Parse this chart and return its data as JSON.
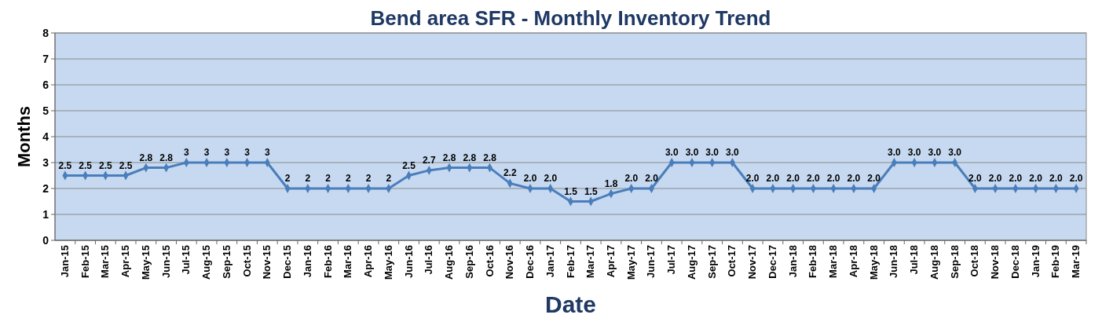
{
  "chart_data": {
    "type": "line",
    "title": "Bend area SFR - Monthly Inventory Trend",
    "xlabel": "Date",
    "ylabel": "Months",
    "categories": [
      "Jan-15",
      "Feb-15",
      "Mar-15",
      "Apr-15",
      "May-15",
      "Jun-15",
      "Jul-15",
      "Aug-15",
      "Sep-15",
      "Oct-15",
      "Nov-15",
      "Dec-15",
      "Jan-16",
      "Feb-16",
      "Mar-16",
      "Apr-16",
      "May-16",
      "Jun-16",
      "Jul-16",
      "Aug-16",
      "Sep-16",
      "Oct-16",
      "Nov-16",
      "Dec-16",
      "Jan-17",
      "Feb-17",
      "Mar-17",
      "Apr-17",
      "May-17",
      "Jun-17",
      "Jul-17",
      "Aug-17",
      "Sep-17",
      "Oct-17",
      "Nov-17",
      "Dec-17",
      "Jan-18",
      "Feb-18",
      "Mar-18",
      "Apr-18",
      "May-18",
      "Jun-18",
      "Jul-18",
      "Aug-18",
      "Sep-18",
      "Oct-18",
      "Nov-18",
      "Dec-18",
      "Jan-19",
      "Feb-19",
      "Mar-19"
    ],
    "series": [
      {
        "color": "#4a7ebb",
        "values": [
          2.5,
          2.5,
          2.5,
          2.5,
          2.8,
          2.8,
          3,
          3,
          3,
          3,
          3,
          2,
          2,
          2,
          2,
          2,
          2,
          2.5,
          2.7,
          2.8,
          2.8,
          2.8,
          2.2,
          2.0,
          2.0,
          1.5,
          1.5,
          1.8,
          2.0,
          2.0,
          3.0,
          3.0,
          3.0,
          3.0,
          2.0,
          2.0,
          2.0,
          2.0,
          2.0,
          2.0,
          2.0,
          3.0,
          3.0,
          3.0,
          3.0,
          2.0,
          2.0,
          2.0,
          2.0,
          2.0,
          2.0
        ],
        "value_labels": [
          "2.5",
          "2.5",
          "2.5",
          "2.5",
          "2.8",
          "2.8",
          "3",
          "3",
          "3",
          "3",
          "3",
          "2",
          "2",
          "2",
          "2",
          "2",
          "2",
          "2.5",
          "2.7",
          "2.8",
          "2.8",
          "2.8",
          "2.2",
          "2.0",
          "2.0",
          "1.5",
          "1.5",
          "1.8",
          "2.0",
          "2.0",
          "3.0",
          "3.0",
          "3.0",
          "3.0",
          "2.0",
          "2.0",
          "2.0",
          "2.0",
          "2.0",
          "2.0",
          "2.0",
          "3.0",
          "3.0",
          "3.0",
          "3.0",
          "2.0",
          "2.0",
          "2.0",
          "2.0",
          "2.0",
          "2.0"
        ]
      }
    ],
    "ylim": [
      0,
      8
    ],
    "yticks": [
      0,
      1,
      2,
      3,
      4,
      5,
      6,
      7,
      8
    ],
    "grid": "y",
    "marker": "diamond",
    "line_style": "solid"
  }
}
